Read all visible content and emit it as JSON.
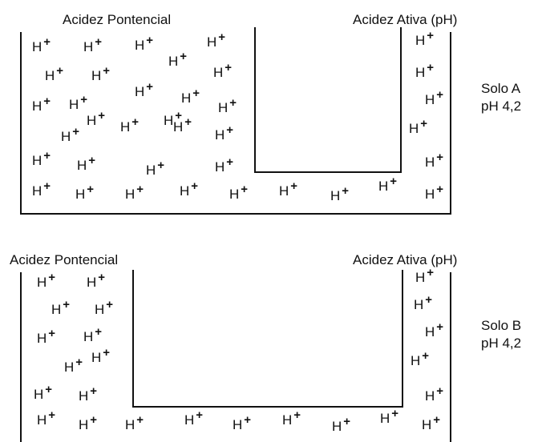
{
  "ion_text": "H",
  "ion_sup": "+",
  "panel_a": {
    "label_left": "Acidez Pontencial",
    "label_right": "Acidez Ativa (pH)",
    "side_line1": "Solo A",
    "side_line2": "pH 4,2"
  },
  "panel_b": {
    "label_left": "Acidez Pontencial",
    "label_right": "Acidez Ativa (pH)",
    "side_line1": "Solo B",
    "side_line2": "pH 4,2"
  }
}
